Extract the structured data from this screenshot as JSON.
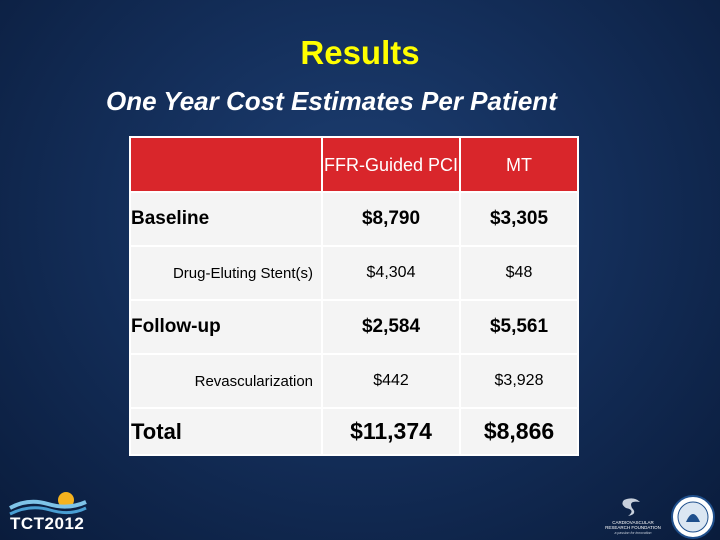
{
  "slide": {
    "title": "Results",
    "subtitle": "One Year Cost Estimates Per Patient"
  },
  "table": {
    "headers": [
      "",
      "FFR-Guided PCI",
      "MT"
    ],
    "rows": [
      {
        "label": "Baseline",
        "ffr": "$8,790",
        "mt": "$3,305"
      },
      {
        "label": "Drug-Eluting Stent(s)",
        "ffr": "$4,304",
        "mt": "$48"
      },
      {
        "label": "Follow-up",
        "ffr": "$2,584",
        "mt": "$5,561"
      },
      {
        "label": "Revascularization",
        "ffr": "$442",
        "mt": "$3,928"
      },
      {
        "label": "Total",
        "ffr": "$11,374",
        "mt": "$8,866"
      }
    ]
  },
  "footer": {
    "event_logo_text": "TCT2012",
    "org_logo_text": [
      "CARDIOVASCULAR",
      "RESEARCH FOUNDATION",
      "a passion for innovation"
    ]
  },
  "colors": {
    "title": "#ffff00",
    "header_fill": "#d9262b",
    "cell_fill": "#f4f4f4",
    "background": "#142f5b"
  }
}
